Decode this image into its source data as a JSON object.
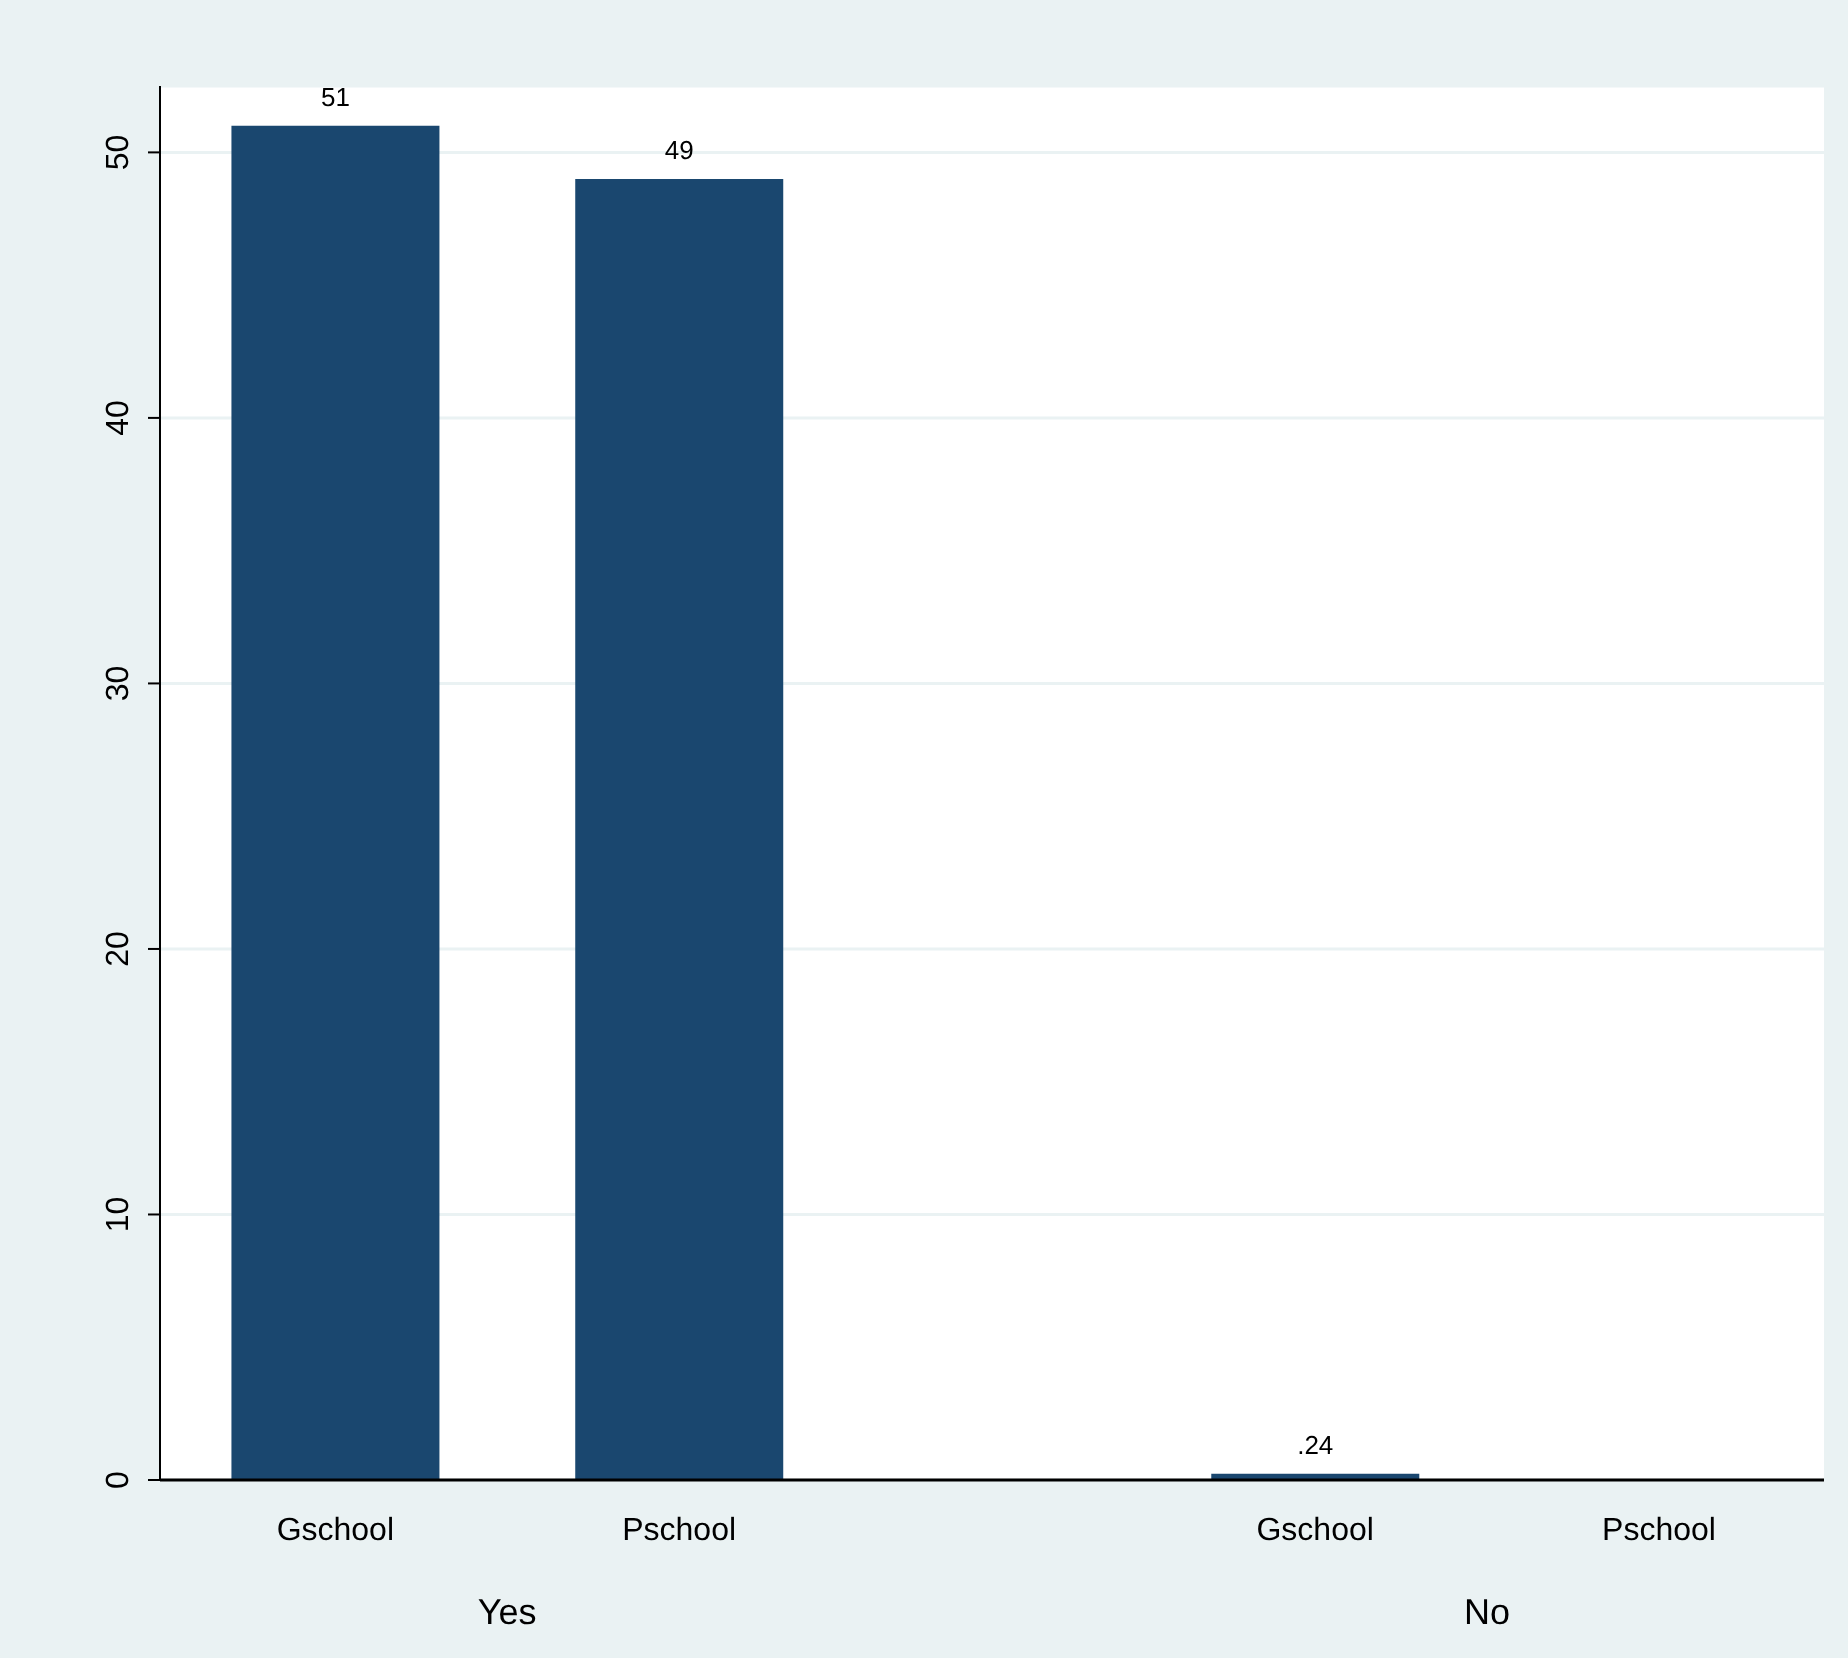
{
  "chart_data": {
    "type": "bar",
    "categories": [
      "Gschool",
      "Pschool",
      "Gschool",
      "Pschool"
    ],
    "values": [
      51,
      49,
      0.24,
      null
    ],
    "value_labels": [
      "51",
      "49",
      ".24",
      null
    ],
    "color": "#1a476f",
    "ylim": [
      0,
      52.5
    ],
    "yticks": [
      0,
      10,
      20,
      30,
      40,
      50
    ],
    "grid": "y",
    "annotations": [
      "Yes",
      "No"
    ]
  }
}
